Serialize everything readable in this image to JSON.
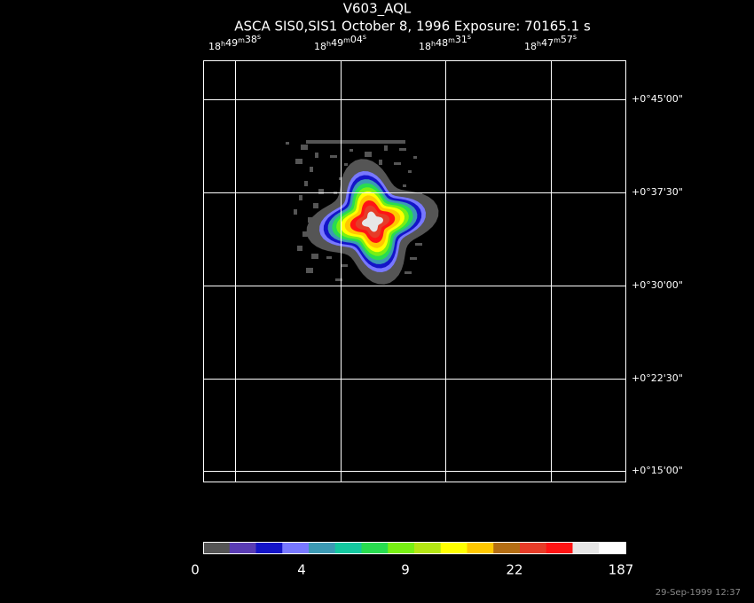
{
  "header": {
    "title": "V603_AQL",
    "subtitle": "ASCA SIS0,SIS1 October 8, 1996 Exposure: 70165.1 s"
  },
  "ra_axis": {
    "units": [
      "h",
      "m",
      "s"
    ],
    "labels": [
      [
        "18",
        "49",
        "38"
      ],
      [
        "18",
        "49",
        "04"
      ],
      [
        "18",
        "48",
        "31"
      ],
      [
        "18",
        "47",
        "57"
      ]
    ]
  },
  "dec_axis": {
    "labels": [
      "+0°45'00\"",
      "+0°37'30\"",
      "+0°30'00\"",
      "+0°22'30\"",
      "+0°15'00\""
    ]
  },
  "colorbar": {
    "colors": [
      "#555555",
      "#5a3cb4",
      "#1414c8",
      "#7878ff",
      "#3c9ab4",
      "#14c8a0",
      "#28dc50",
      "#78f014",
      "#b4e614",
      "#ffff00",
      "#ffc800",
      "#b46e14",
      "#e63c28",
      "#ff1414",
      "#e6e6e6",
      "#ffffff"
    ],
    "labels": [
      "0",
      "4",
      "9",
      "22",
      "187"
    ]
  },
  "footer": {
    "timestamp": "29-Sep-1999 12:37"
  }
}
